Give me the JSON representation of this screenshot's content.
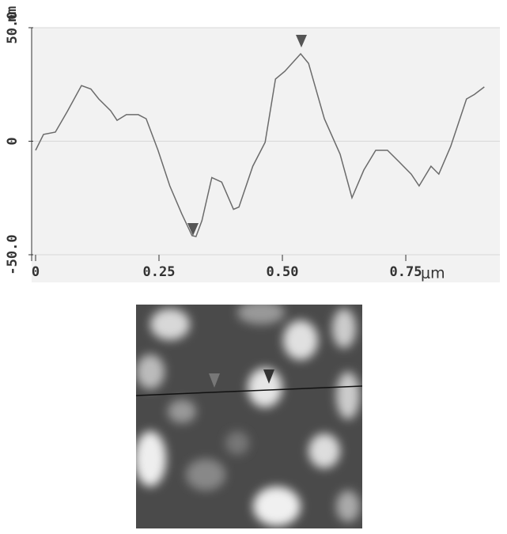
{
  "chart_data": {
    "type": "line",
    "y_unit": "nm",
    "x_unit": "μm",
    "x": [
      0,
      0.016,
      0.04,
      0.064,
      0.093,
      0.112,
      0.128,
      0.152,
      0.165,
      0.184,
      0.208,
      0.224,
      0.248,
      0.272,
      0.296,
      0.317,
      0.325,
      0.337,
      0.357,
      0.377,
      0.401,
      0.412,
      0.44,
      0.465,
      0.486,
      0.505,
      0.537,
      0.553,
      0.585,
      0.617,
      0.641,
      0.665,
      0.689,
      0.713,
      0.737,
      0.761,
      0.777,
      0.801,
      0.817,
      0.841,
      0.873,
      0.889,
      0.909
    ],
    "values": [
      -4,
      3,
      4,
      13,
      24.5,
      23,
      18.6,
      13.4,
      9.2,
      11.7,
      11.7,
      9.9,
      -4,
      -19.7,
      -31.9,
      -41.6,
      -42,
      -35,
      -16,
      -18,
      -30,
      -29,
      -11,
      -0.5,
      27.4,
      30.8,
      38.5,
      34.3,
      9.9,
      -5.7,
      -24.9,
      -12.7,
      -4,
      -4,
      -9.2,
      -14.5,
      -19.7,
      -11,
      -14.5,
      -2.3,
      18.6,
      20.6,
      23.9
    ],
    "color": "#6b6b6b",
    "xlim": [
      0,
      0.94
    ],
    "ylim": [
      -50,
      50
    ],
    "xticks": [
      0,
      0.25,
      {
        "value": 0.5,
        "label": "0.50"
      },
      0.75
    ],
    "yticks": [
      {
        "value": -50,
        "label": "-50.0"
      },
      0,
      {
        "value": 50,
        "label": "50.0"
      }
    ],
    "grid": true
  }
}
